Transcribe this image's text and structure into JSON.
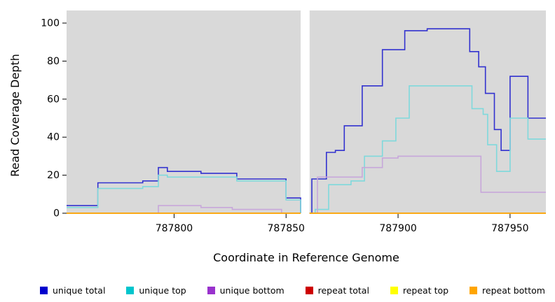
{
  "chart_data": {
    "type": "line",
    "subtype": "step",
    "title": "",
    "xlabel": "Coordinate in Reference Genome",
    "ylabel": "Read Coverage Depth",
    "xlim": [
      787752,
      787966
    ],
    "ylim": [
      0,
      100
    ],
    "x_ticks": [
      787800,
      787850,
      787900,
      787950
    ],
    "y_ticks": [
      0,
      20,
      40,
      60,
      80,
      100
    ],
    "plot_bg": "#d9d9d9",
    "gap_band": {
      "start": 787856.5,
      "end": 787860.5,
      "color": "#ffffff"
    },
    "grid": false,
    "legend_position": "bottom",
    "series": [
      {
        "name": "unique total",
        "line_color": "#3232cf",
        "legend_color": "#0000cd",
        "segments": [
          [
            [
              787752,
              4
            ],
            [
              787766,
              16
            ],
            [
              787786,
              17
            ],
            [
              787793,
              24
            ],
            [
              787797,
              22
            ],
            [
              787812,
              21
            ],
            [
              787828,
              18
            ],
            [
              787850,
              8
            ],
            [
              787856.5,
              0
            ]
          ],
          [
            [
              787860.5,
              0
            ],
            [
              787861.5,
              18
            ],
            [
              787868,
              32
            ],
            [
              787872,
              33
            ],
            [
              787876,
              46
            ],
            [
              787884,
              67
            ],
            [
              787893,
              86
            ],
            [
              787903,
              96
            ],
            [
              787913,
              97
            ],
            [
              787932,
              85
            ],
            [
              787936,
              77
            ],
            [
              787939,
              63
            ],
            [
              787943,
              44
            ],
            [
              787946,
              33
            ],
            [
              787950,
              72
            ],
            [
              787958,
              50
            ],
            [
              787966,
              50
            ]
          ]
        ]
      },
      {
        "name": "unique top",
        "line_color": "#7fd9dc",
        "legend_color": "#00c5cd",
        "segments": [
          [
            [
              787752,
              3
            ],
            [
              787766,
              13
            ],
            [
              787786,
              14
            ],
            [
              787793,
              20
            ],
            [
              787797,
              19
            ],
            [
              787828,
              17
            ],
            [
              787850,
              7
            ],
            [
              787856.5,
              0
            ]
          ],
          [
            [
              787860.5,
              0
            ],
            [
              787863,
              2
            ],
            [
              787869,
              15
            ],
            [
              787879,
              17
            ],
            [
              787885,
              30
            ],
            [
              787893,
              38
            ],
            [
              787899,
              50
            ],
            [
              787905,
              67
            ],
            [
              787933,
              55
            ],
            [
              787938,
              52
            ],
            [
              787940,
              36
            ],
            [
              787944,
              22
            ],
            [
              787950,
              50
            ],
            [
              787958,
              39
            ],
            [
              787966,
              39
            ]
          ]
        ]
      },
      {
        "name": "unique bottom",
        "line_color": "#c7a7da",
        "legend_color": "#9932cd",
        "segments": [
          [
            [
              787752,
              0
            ],
            [
              787793,
              4
            ],
            [
              787812,
              3
            ],
            [
              787826,
              2
            ],
            [
              787848,
              0
            ],
            [
              787856.5,
              0
            ]
          ],
          [
            [
              787860.5,
              0
            ],
            [
              787864,
              19
            ],
            [
              787884,
              24
            ],
            [
              787893,
              29
            ],
            [
              787900,
              30
            ],
            [
              787937,
              11
            ],
            [
              787966,
              11
            ]
          ]
        ]
      },
      {
        "name": "repeat total",
        "line_color": "#cd2222",
        "legend_color": "#cd0000",
        "segments": [
          [
            [
              787752,
              0
            ],
            [
              787856.5,
              0
            ]
          ],
          [
            [
              787860.5,
              0
            ],
            [
              787966,
              0
            ]
          ]
        ]
      },
      {
        "name": "repeat top",
        "line_color": "#ffff33",
        "legend_color": "#ffff00",
        "segments": [
          [
            [
              787752,
              0
            ],
            [
              787856.5,
              0
            ]
          ],
          [
            [
              787860.5,
              0
            ],
            [
              787966,
              0
            ]
          ]
        ]
      },
      {
        "name": "repeat bottom",
        "line_color": "#ffa200",
        "legend_color": "#ffa500",
        "segments": [
          [
            [
              787752,
              0
            ],
            [
              787856.5,
              0
            ]
          ],
          [
            [
              787860.5,
              0
            ],
            [
              787966,
              0
            ]
          ]
        ]
      }
    ]
  }
}
